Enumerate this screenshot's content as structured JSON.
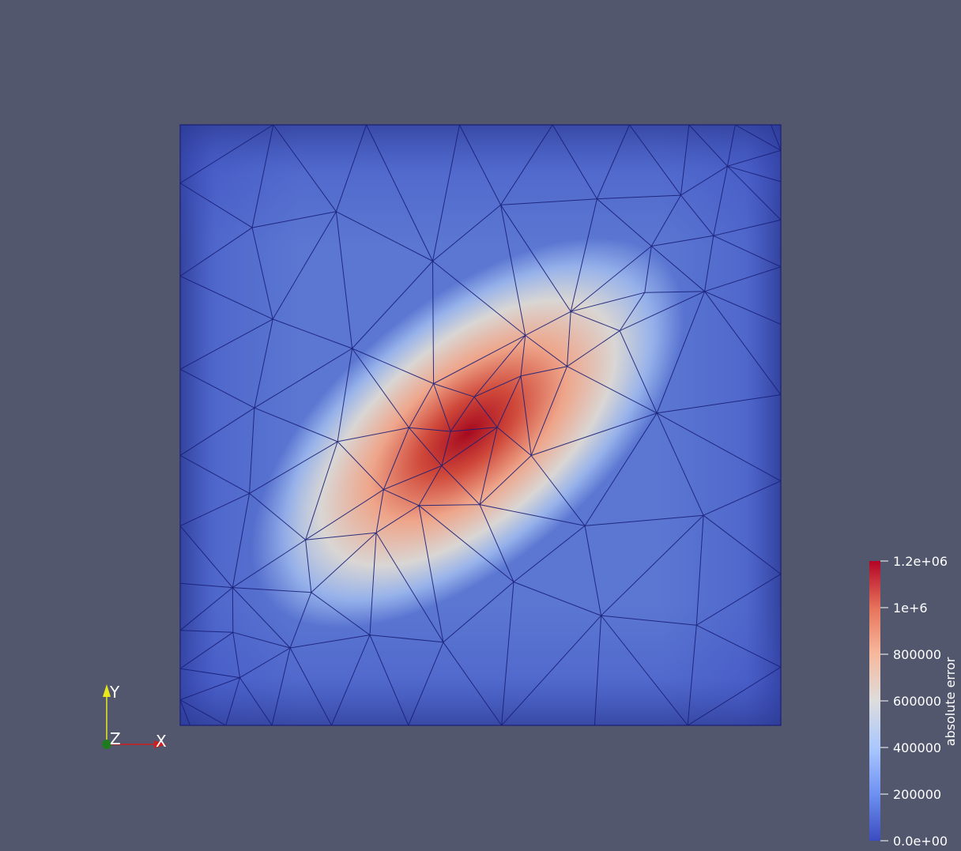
{
  "scene": {
    "background": "#52576e",
    "mesh_edge_color": "#1a1f78",
    "field_name": "absolute error"
  },
  "color_bar": {
    "title": "absolute error",
    "tick_labels": [
      "1.2e+06",
      "1e+6",
      "800000",
      "600000",
      "400000",
      "200000",
      "0.0e+00"
    ],
    "tick_values": [
      1200000,
      1000000,
      800000,
      600000,
      400000,
      200000,
      0
    ],
    "range": [
      0,
      1200000
    ],
    "colormap": [
      "#3b4cc0",
      "#6f92f3",
      "#aac7fd",
      "#dddddd",
      "#f7b89c",
      "#e7745b",
      "#b40426"
    ]
  },
  "orientation_axes": {
    "x_label": "X",
    "y_label": "Y",
    "z_label": "Z",
    "x_color": "#cc1f1f",
    "y_color": "#e8e81a",
    "z_color": "#1f7a1f"
  }
}
